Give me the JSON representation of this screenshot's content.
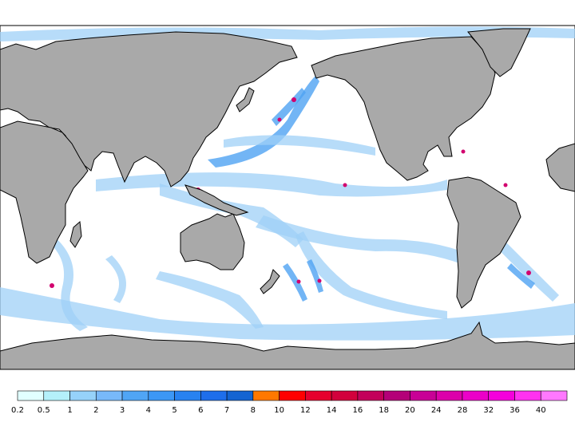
{
  "colorbar": {
    "levels": [
      0.2,
      0.5,
      1,
      2,
      3,
      4,
      5,
      6,
      7,
      8,
      10,
      12,
      14,
      16,
      18,
      20,
      24,
      28,
      32,
      36,
      40
    ],
    "colors": [
      "#e1ffff",
      "#b4f0fa",
      "#96d2fa",
      "#78b9fa",
      "#50a5f5",
      "#3c97f5",
      "#2882f0",
      "#1e6eeb",
      "#1464d2",
      "#ff7800",
      "#ff0000",
      "#e6002d",
      "#d2003c",
      "#c3005a",
      "#b40078",
      "#c80096",
      "#dc00aa",
      "#eb00c8",
      "#f500dc",
      "#ff32f0",
      "#ff78ff"
    ]
  }
}
